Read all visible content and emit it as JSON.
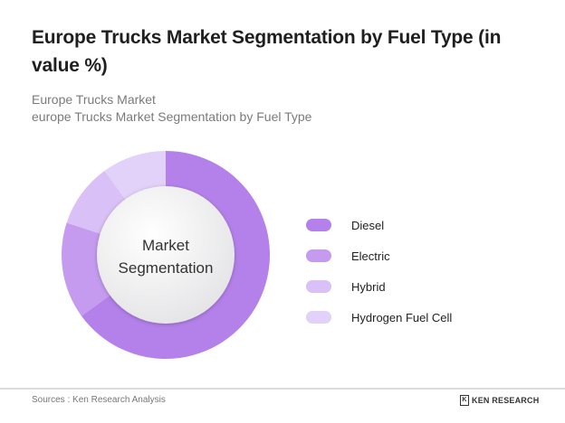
{
  "header": {
    "title": "Europe Trucks Market Segmentation by Fuel Type (in value %)",
    "subtitle_line1": "Europe Trucks Market",
    "subtitle_line2": "europe Trucks Market Segmentation by Fuel Type"
  },
  "center_label": {
    "line1": "Market",
    "line2": "Segmentation"
  },
  "legend": [
    {
      "label": "Diesel",
      "color": "#b481ea"
    },
    {
      "label": "Electric",
      "color": "#c59bef"
    },
    {
      "label": "Hybrid",
      "color": "#d9c0f6"
    },
    {
      "label": "Hydrogen Fuel Cell",
      "color": "#e2d1f8"
    }
  ],
  "footer": {
    "source": "Sources : Ken Research Analysis",
    "logo_text": "KEN RESEARCH"
  },
  "chart_data": {
    "type": "pie",
    "variant": "donut",
    "title": "Europe Trucks Market Segmentation by Fuel Type (in value %)",
    "subtitle": "Europe Trucks Market / europe Trucks Market Segmentation by Fuel Type",
    "center_text": "Market Segmentation",
    "categories": [
      "Diesel",
      "Electric",
      "Hybrid",
      "Hydrogen Fuel Cell"
    ],
    "values": [
      65,
      15,
      10,
      10
    ],
    "colors": [
      "#b481ea",
      "#c59bef",
      "#d9c0f6",
      "#e2d1f8"
    ],
    "start_angle": "12 o'clock, clockwise",
    "legend_position": "right",
    "data_labels": false
  }
}
